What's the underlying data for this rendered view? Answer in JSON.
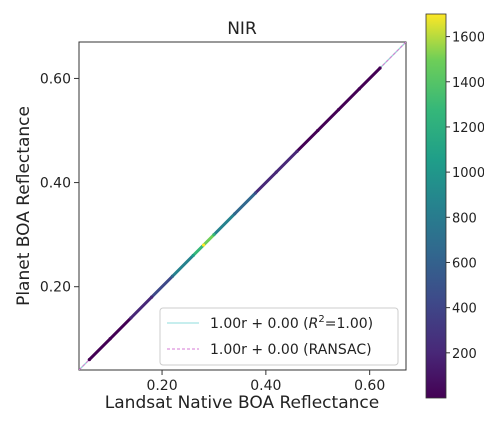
{
  "chart_data": {
    "type": "scatter",
    "title": "NIR",
    "xlabel": "Landsat Native BOA Reflectance",
    "ylabel": "Planet BOA Reflectance",
    "xlim": [
      0.04,
      0.67
    ],
    "ylim": [
      0.04,
      0.67
    ],
    "xticks": [
      0.2,
      0.4,
      0.6
    ],
    "yticks": [
      0.2,
      0.4,
      0.6
    ],
    "xtick_labels": [
      "0.20",
      "0.40",
      "0.60"
    ],
    "ytick_labels": [
      "0.20",
      "0.40",
      "0.60"
    ],
    "grid": false,
    "legend_position": "lower-right",
    "x": [
      0.06,
      0.1,
      0.14,
      0.18,
      0.22,
      0.26,
      0.28,
      0.3,
      0.34,
      0.38,
      0.42,
      0.46,
      0.5,
      0.54,
      0.58,
      0.62
    ],
    "y": [
      0.06,
      0.1,
      0.14,
      0.18,
      0.22,
      0.26,
      0.28,
      0.3,
      0.34,
      0.38,
      0.42,
      0.46,
      0.5,
      0.54,
      0.58,
      0.62
    ],
    "density": [
      20,
      60,
      120,
      300,
      650,
      1100,
      1600,
      1200,
      700,
      400,
      220,
      120,
      60,
      30,
      15,
      5
    ],
    "fits": [
      {
        "label_prefix": "1.00r + 0.00 (",
        "label_sup_base": "R",
        "label_sup": "2",
        "label_suffix": "=1.00)",
        "slope": 1.0,
        "intercept": 0.0,
        "color": "#8fdcdc",
        "style": "solid"
      },
      {
        "label": "1.00r + 0.00 (RANSAC)",
        "slope": 1.0,
        "intercept": 0.0,
        "color": "#d67ad6",
        "style": "dashed"
      }
    ],
    "identity_line_color": "#aaaaaa",
    "colorbar": {
      "min": 0,
      "max": 1700,
      "ticks": [
        200,
        400,
        600,
        800,
        1000,
        1200,
        1400,
        1600
      ],
      "tick_labels": [
        "200",
        "400",
        "600",
        "800",
        "1000",
        "1200",
        "1400",
        "1600"
      ],
      "colormap": "viridis"
    }
  }
}
